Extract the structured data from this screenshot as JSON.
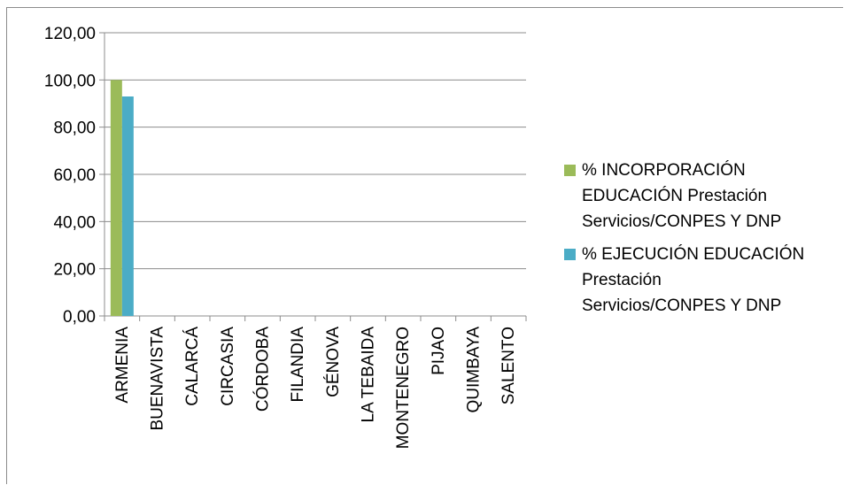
{
  "chart_data": {
    "type": "bar",
    "categories": [
      "ARMENIA",
      "BUENAVISTA",
      "CALARCÁ",
      "CIRCASIA",
      "CÓRDOBA",
      "FILANDIA",
      "GÉNOVA",
      "LA TEBAIDA",
      "MONTENEGRO",
      "PIJAO",
      "QUIMBAYA",
      "SALENTO"
    ],
    "series": [
      {
        "name": "% INCORPORACIÓN EDUCACIÓN Prestación Servicios/CONPES Y DNP",
        "name_lines": [
          "% INCORPORACIÓN",
          "EDUCACIÓN Prestación",
          "Servicios/CONPES Y DNP"
        ],
        "color": "#9BBB59",
        "values": [
          100,
          0,
          0,
          0,
          0,
          0,
          0,
          0,
          0,
          0,
          0,
          0
        ]
      },
      {
        "name": "% EJECUCIÓN EDUCACIÓN Prestación Servicios/CONPES Y DNP",
        "name_lines": [
          "% EJECUCIÓN EDUCACIÓN",
          "Prestación",
          "Servicios/CONPES Y DNP"
        ],
        "color": "#4BACC6",
        "values": [
          93,
          0,
          0,
          0,
          0,
          0,
          0,
          0,
          0,
          0,
          0,
          0
        ]
      }
    ],
    "yticks": [
      "0,00",
      "20,00",
      "40,00",
      "60,00",
      "80,00",
      "100,00",
      "120,00"
    ],
    "ylim": [
      0,
      120
    ],
    "grid": true,
    "legend_position": "right"
  }
}
